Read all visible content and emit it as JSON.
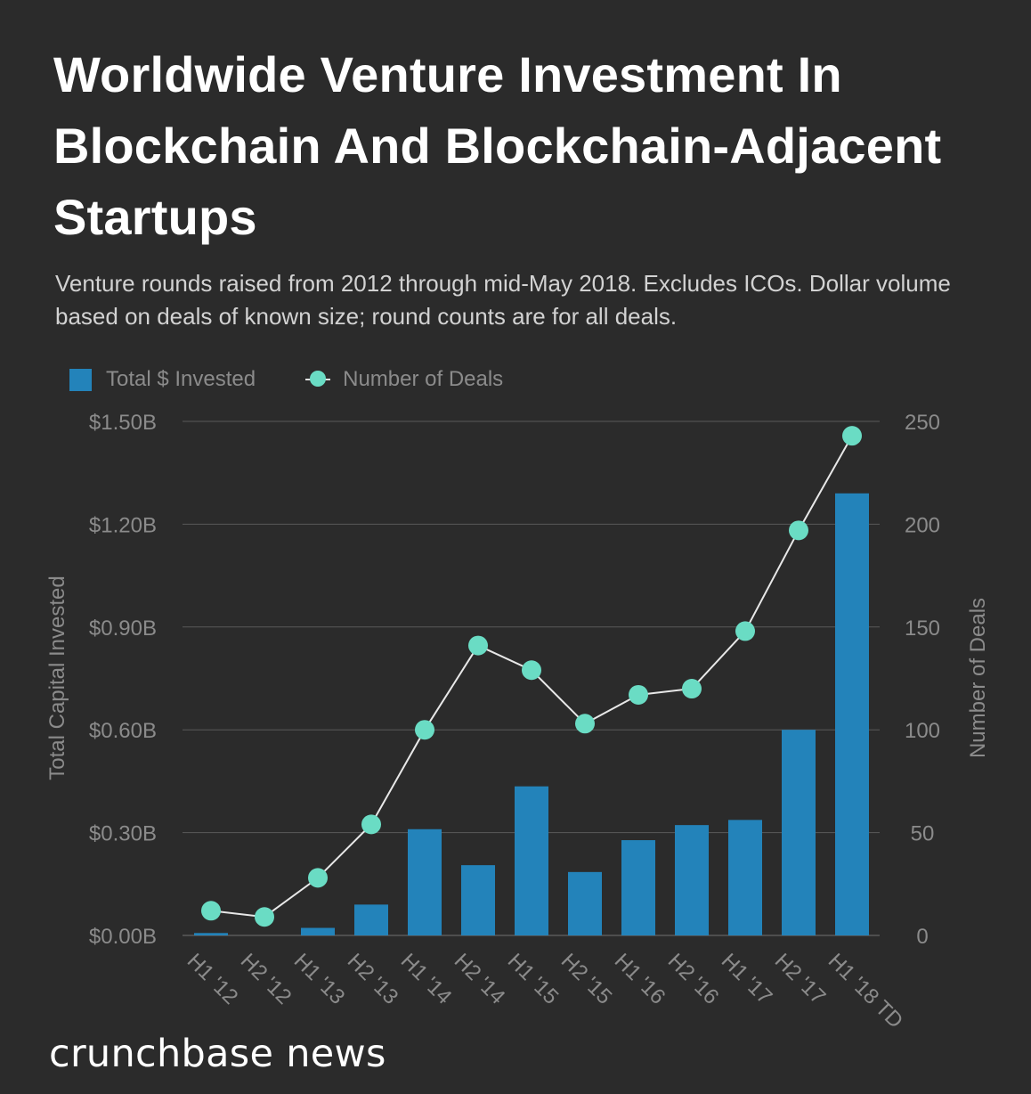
{
  "title": "Worldwide Venture Investment In Blockchain And Blockchain-Adjacent Startups",
  "subtitle": "Venture rounds raised from 2012 through mid-May 2018. Excludes ICOs. Dollar volume based on deals of known size; round counts are for all deals.",
  "brand": "crunchbase news",
  "legend": {
    "bar_label": "Total $ Invested",
    "line_label": "Number of Deals"
  },
  "colors": {
    "background": "#2b2b2b",
    "bar": "#2383ba",
    "line": "#e8e8e8",
    "point": "#6adcc4",
    "grid": "#5a5a5a",
    "axis_text": "#8b8b8b"
  },
  "chart_data": {
    "type": "bar",
    "categories": [
      "H1 '12",
      "H2 '12",
      "H1 '13",
      "H2 '13",
      "H1 '14",
      "H2 '14",
      "H1 '15",
      "H2 '15",
      "H1 '16",
      "H2 '16",
      "H1 '17",
      "H2 '17",
      "H1 '18 TD"
    ],
    "series": [
      {
        "name": "Total $ Invested",
        "type": "bar",
        "axis": "left",
        "unit": "billion USD",
        "values": [
          0.007,
          0.0,
          0.022,
          0.09,
          0.31,
          0.205,
          0.435,
          0.185,
          0.278,
          0.322,
          0.337,
          0.6,
          1.29
        ]
      },
      {
        "name": "Number of Deals",
        "type": "line",
        "axis": "right",
        "values": [
          12,
          9,
          28,
          54,
          100,
          141,
          129,
          103,
          117,
          120,
          148,
          197,
          243
        ]
      }
    ],
    "y_left": {
      "label": "Total Capital Invested",
      "ylim": [
        0,
        1.5
      ],
      "ticks": [
        0,
        0.3,
        0.6,
        0.9,
        1.2,
        1.5
      ],
      "tick_labels": [
        "$0.00B",
        "$0.30B",
        "$0.60B",
        "$0.90B",
        "$1.20B",
        "$1.50B"
      ]
    },
    "y_right": {
      "label": "Number of Deals",
      "ylim": [
        0,
        250
      ],
      "ticks": [
        0,
        50,
        100,
        150,
        200,
        250
      ],
      "tick_labels": [
        "0",
        "50",
        "100",
        "150",
        "200",
        "250"
      ]
    },
    "grid": true,
    "legend_position": "top-left"
  }
}
